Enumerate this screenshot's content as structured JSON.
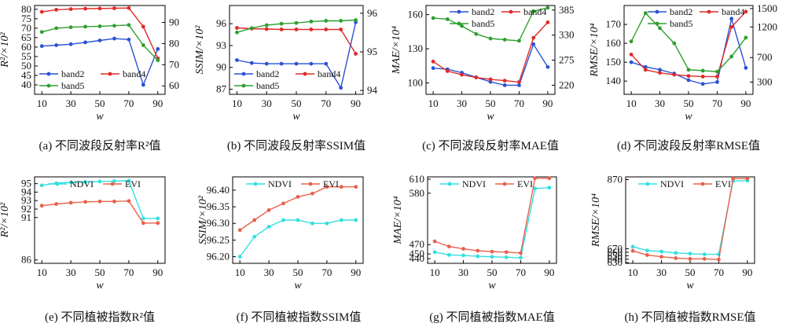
{
  "chart_data": [
    {
      "type": "line",
      "caption": "(a) 不同波段反射率R²值",
      "xlabel": "w",
      "ylabel": "R²/×10²",
      "x": [
        10,
        20,
        30,
        40,
        50,
        60,
        70,
        80,
        90
      ],
      "xticks": [
        10,
        30,
        50,
        70,
        90
      ],
      "ylim": [
        35,
        82
      ],
      "yticks": [
        40,
        45,
        50,
        55,
        60,
        65,
        70,
        75,
        80
      ],
      "y2lim": [
        56,
        98
      ],
      "y2ticks": [
        60,
        70,
        80,
        90
      ],
      "legend": "bottom-left",
      "series": [
        {
          "name": "band2",
          "color": "#2a52d4",
          "axis": "left",
          "values": [
            60.5,
            61,
            61.5,
            62.5,
            63.5,
            64.5,
            64,
            40,
            59
          ]
        },
        {
          "name": "band4",
          "color": "#e02a2a",
          "axis": "right",
          "values": [
            95,
            96,
            96.3,
            96.5,
            96.6,
            96.7,
            96.8,
            88,
            73
          ]
        },
        {
          "name": "band5",
          "color": "#2ea02e",
          "axis": "left",
          "values": [
            68,
            70,
            70.5,
            70.8,
            71,
            71.3,
            71.7,
            61,
            53
          ]
        }
      ]
    },
    {
      "type": "line",
      "caption": "(b) 不同波段反射率SSIM值",
      "xlabel": "w",
      "ylabel": "SSIM/×10²",
      "x": [
        10,
        20,
        30,
        40,
        50,
        60,
        70,
        80,
        90
      ],
      "xticks": [
        10,
        30,
        50,
        70,
        90
      ],
      "ylim": [
        86.3,
        98.5
      ],
      "yticks": [
        87,
        90,
        93,
        96
      ],
      "y2lim": [
        93.9,
        96.2
      ],
      "y2ticks": [
        94,
        95,
        96
      ],
      "legend": "bottom-left",
      "series": [
        {
          "name": "band2",
          "color": "#2a52d4",
          "axis": "left",
          "values": [
            91,
            90.6,
            90.5,
            90.5,
            90.5,
            90.5,
            90.5,
            87.2,
            96.2
          ]
        },
        {
          "name": "band4",
          "color": "#e02a2a",
          "axis": "right",
          "values": [
            95.62,
            95.6,
            95.59,
            95.58,
            95.58,
            95.58,
            95.58,
            95.58,
            94.95
          ]
        },
        {
          "name": "band5",
          "color": "#2ea02e",
          "axis": "left",
          "values": [
            94.8,
            95.4,
            95.8,
            96,
            96.1,
            96.3,
            96.4,
            96.4,
            96.5
          ]
        }
      ]
    },
    {
      "type": "line",
      "caption": "(c) 不同波段反射率MAE值",
      "xlabel": "w",
      "ylabel": "MAE/×10⁴",
      "x": [
        10,
        20,
        30,
        40,
        50,
        60,
        70,
        80,
        90
      ],
      "xticks": [
        10,
        30,
        50,
        70,
        90
      ],
      "ylim": [
        90,
        168
      ],
      "yticks": [
        100,
        130,
        160
      ],
      "y2lim": [
        200,
        395
      ],
      "y2ticks": [
        220,
        275,
        330,
        385
      ],
      "legend": "top-right",
      "series": [
        {
          "name": "band2",
          "color": "#2a52d4",
          "axis": "left",
          "values": [
            113,
            112,
            109,
            105,
            101,
            98,
            98,
            134,
            114
          ]
        },
        {
          "name": "band4",
          "color": "#e02a2a",
          "axis": "right",
          "values": [
            272,
            251,
            243,
            237,
            233,
            230,
            227,
            324,
            358
          ]
        },
        {
          "name": "band5",
          "color": "#2ea02e",
          "axis": "left",
          "values": [
            157,
            156,
            150,
            143,
            139,
            138,
            137,
            163,
            166
          ]
        }
      ]
    },
    {
      "type": "line",
      "caption": "(d) 不同波段反射率RMSE值",
      "xlabel": "w",
      "ylabel": "RMSE/×10⁴",
      "x": [
        10,
        20,
        30,
        40,
        50,
        60,
        70,
        80,
        90
      ],
      "xticks": [
        10,
        30,
        50,
        70,
        90
      ],
      "ylim": [
        133,
        180
      ],
      "yticks": [
        140,
        150,
        160,
        170
      ],
      "y2lim": [
        100,
        1550
      ],
      "y2ticks": [
        300,
        700,
        1200,
        1500
      ],
      "legend": "top-right",
      "series": [
        {
          "name": "band2",
          "color": "#2a52d4",
          "axis": "left",
          "values": [
            150,
            147.5,
            146,
            144,
            140.5,
            138.5,
            139.5,
            173,
            147
          ]
        },
        {
          "name": "band4",
          "color": "#e02a2a",
          "axis": "right",
          "values": [
            750,
            500,
            450,
            420,
            400,
            390,
            390,
            1200,
            1450
          ]
        },
        {
          "name": "band5",
          "color": "#2ea02e",
          "axis": "left",
          "values": [
            161,
            176,
            168,
            160,
            146,
            145.5,
            145,
            153,
            163
          ]
        }
      ]
    },
    {
      "type": "line",
      "caption": "(e) 不同植被指数R²值",
      "xlabel": "w",
      "ylabel": "R²/×10²",
      "x": [
        10,
        20,
        30,
        40,
        50,
        60,
        70,
        80,
        90
      ],
      "xticks": [
        10,
        30,
        50,
        70,
        90
      ],
      "ylim": [
        85.6,
        95.8
      ],
      "yticks": [
        86,
        91,
        92,
        93,
        94,
        95
      ],
      "legend": "top-center",
      "series": [
        {
          "name": "NDVI",
          "color": "#33e0e0",
          "axis": "left",
          "values": [
            94.8,
            95.05,
            95.15,
            95.2,
            95.25,
            95.3,
            95.35,
            90.9,
            90.9
          ]
        },
        {
          "name": "EVI",
          "color": "#e8604c",
          "axis": "left",
          "values": [
            92.4,
            92.6,
            92.75,
            92.85,
            92.9,
            92.9,
            92.95,
            90.35,
            90.35
          ]
        }
      ]
    },
    {
      "type": "line",
      "caption": "(f) 不同植被指数SSIM值",
      "xlabel": "w",
      "ylabel": "SSIM/×10²",
      "x": [
        10,
        20,
        30,
        40,
        50,
        60,
        70,
        80,
        90
      ],
      "xticks": [
        10,
        30,
        50,
        70,
        90
      ],
      "ylim": [
        96.18,
        96.44
      ],
      "yticks": [
        96.2,
        96.25,
        96.3,
        96.35,
        96.4
      ],
      "legend": "top-center",
      "series": [
        {
          "name": "NDVI",
          "color": "#33e0e0",
          "axis": "left",
          "values": [
            96.2,
            96.26,
            96.29,
            96.31,
            96.31,
            96.3,
            96.3,
            96.31,
            96.31
          ]
        },
        {
          "name": "EVI",
          "color": "#e8604c",
          "axis": "left",
          "values": [
            96.28,
            96.31,
            96.34,
            96.36,
            96.38,
            96.39,
            96.41,
            96.41,
            96.41
          ]
        }
      ]
    },
    {
      "type": "line",
      "caption": "(g) 不同植被指数MAE值",
      "xlabel": "w",
      "ylabel": "MAE/×10⁴",
      "x": [
        10,
        20,
        30,
        40,
        50,
        60,
        70,
        80,
        90
      ],
      "xticks": [
        10,
        30,
        50,
        70,
        90
      ],
      "ylim": [
        430,
        615
      ],
      "yticks": [
        440,
        450,
        470,
        580,
        610
      ],
      "legend": "top-center",
      "series": [
        {
          "name": "NDVI",
          "color": "#33e0e0",
          "axis": "left",
          "values": [
            454,
            448,
            447,
            445,
            444,
            443,
            442,
            590,
            592
          ]
        },
        {
          "name": "EVI",
          "color": "#e8604c",
          "axis": "left",
          "values": [
            477,
            466,
            461,
            457,
            455,
            454,
            452,
            612,
            612
          ]
        }
      ]
    },
    {
      "type": "line",
      "caption": "(h) 不同植被指数RMSE值",
      "xlabel": "w",
      "ylabel": "RMSE/×10⁴",
      "x": [
        10,
        20,
        30,
        40,
        50,
        60,
        70,
        80,
        90
      ],
      "xticks": [
        10,
        30,
        50,
        70,
        90
      ],
      "ylim": [
        628,
        878
      ],
      "yticks": [
        630,
        640,
        650,
        660,
        670,
        870
      ],
      "legend": "top-center",
      "series": [
        {
          "name": "NDVI",
          "color": "#33e0e0",
          "axis": "left",
          "values": [
            676,
            665,
            662,
            658,
            656,
            654,
            654,
            866,
            867
          ]
        },
        {
          "name": "EVI",
          "color": "#e8604c",
          "axis": "left",
          "values": [
            664,
            652,
            647,
            643,
            641,
            641,
            639,
            873,
            873
          ]
        }
      ]
    }
  ]
}
